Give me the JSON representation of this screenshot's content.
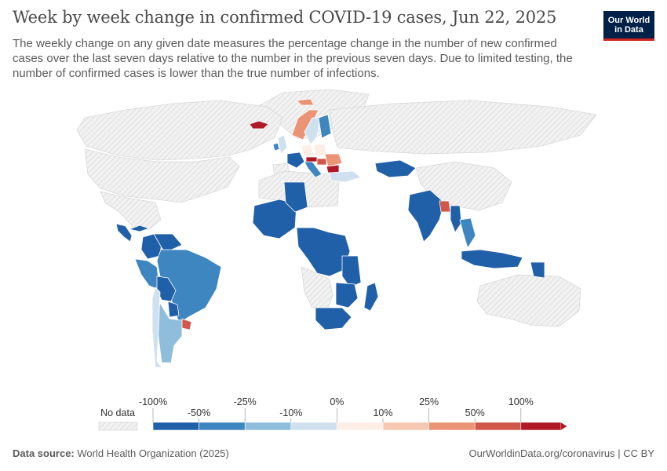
{
  "title": "Week by week change in confirmed COVID-19 cases, Jun 22, 2025",
  "subtitle": "The weekly change on any given date measures the percentage change in the number of new confirmed cases over the last seven days relative to the number in the previous seven days. Due to limited testing, the number of confirmed cases is lower than the true number of infections.",
  "logo": {
    "line1": "Our World",
    "line2": "in Data"
  },
  "legend": {
    "no_data_label": "No data",
    "upper_ticks": [
      "-100%",
      "-25%",
      "0%",
      "25%",
      "100%"
    ],
    "lower_ticks": [
      "-50%",
      "-10%",
      "10%",
      "50%"
    ],
    "colors": [
      "#2060a8",
      "#3d86c0",
      "#8fbedd",
      "#cfe1ef",
      "#fdeee5",
      "#f6c8b2",
      "#ea9475",
      "#d1574a",
      "#b01a28"
    ]
  },
  "colors": {
    "no_data": "#e4e4e4",
    "outline": "#ffffff"
  },
  "footer": {
    "source_label": "Data source:",
    "source_value": "World Health Organization (2025)",
    "url": "OurWorldinData.org/coronavirus | CC BY"
  },
  "regions": [
    {
      "name": "Greenland",
      "bin": "no-data"
    },
    {
      "name": "Canada",
      "bin": "no-data"
    },
    {
      "name": "United States",
      "bin": "no-data"
    },
    {
      "name": "Mexico",
      "bin": "no-data"
    },
    {
      "name": "Cuba",
      "bin": "-100%..-50%"
    },
    {
      "name": "Central America",
      "bin": "-100%..-50%"
    },
    {
      "name": "Colombia",
      "bin": "-100%..-50%"
    },
    {
      "name": "Venezuela",
      "bin": "-100%..-50%"
    },
    {
      "name": "Brazil",
      "bin": "-50%..-25%"
    },
    {
      "name": "Peru",
      "bin": "-50%..-25%"
    },
    {
      "name": "Bolivia",
      "bin": "-100%..-50%"
    },
    {
      "name": "Paraguay",
      "bin": "-100%..-50%"
    },
    {
      "name": "Argentina",
      "bin": "-25%..-10%"
    },
    {
      "name": "Chile",
      "bin": "-10%..0%"
    },
    {
      "name": "Uruguay",
      "bin": "50%..100%"
    },
    {
      "name": "Iceland",
      "bin": ">100%"
    },
    {
      "name": "Ireland",
      "bin": "-50%..-25%"
    },
    {
      "name": "United Kingdom",
      "bin": "-10%..0%"
    },
    {
      "name": "France",
      "bin": "-100%..-50%"
    },
    {
      "name": "Spain",
      "bin": "no-data"
    },
    {
      "name": "Germany",
      "bin": "0%..10%"
    },
    {
      "name": "Poland",
      "bin": "0%..10%"
    },
    {
      "name": "Italy",
      "bin": "-50%..-25%"
    },
    {
      "name": "Austria",
      "bin": ">100%"
    },
    {
      "name": "Hungary",
      "bin": "50%..100%"
    },
    {
      "name": "Romania",
      "bin": "25%..50%"
    },
    {
      "name": "Bulgaria",
      "bin": ">100%"
    },
    {
      "name": "Norway",
      "bin": "25%..50%"
    },
    {
      "name": "Sweden",
      "bin": "-10%..0%"
    },
    {
      "name": "Finland",
      "bin": "-50%..-25%"
    },
    {
      "name": "Svalbard",
      "bin": "25%..50%"
    },
    {
      "name": "Turkey",
      "bin": "-10%..0%"
    },
    {
      "name": "Russia",
      "bin": "no-data"
    },
    {
      "name": "Kazakhstan",
      "bin": "-100%..-50%"
    },
    {
      "name": "China",
      "bin": "no-data"
    },
    {
      "name": "India",
      "bin": "-100%..-50%"
    },
    {
      "name": "Bangladesh",
      "bin": "50%..100%"
    },
    {
      "name": "Myanmar",
      "bin": "-100%..-50%"
    },
    {
      "name": "Thailand",
      "bin": "-50%..-25%"
    },
    {
      "name": "Indonesia",
      "bin": "-100%..-50%"
    },
    {
      "name": "Papua New Guinea",
      "bin": "-100%..-50%"
    },
    {
      "name": "Australia",
      "bin": "no-data"
    },
    {
      "name": "West Africa",
      "bin": "-100%..-50%"
    },
    {
      "name": "Chad",
      "bin": "-100%..-50%"
    },
    {
      "name": "Central Africa",
      "bin": "-100%..-50%"
    },
    {
      "name": "Tanzania",
      "bin": "-100%..-50%"
    },
    {
      "name": "Mozambique",
      "bin": "-100%..-50%"
    },
    {
      "name": "Madagascar",
      "bin": "-100%..-50%"
    },
    {
      "name": "South Africa",
      "bin": "-100%..-50%"
    },
    {
      "name": "North Africa",
      "bin": "no-data"
    },
    {
      "name": "Angola/Namibia",
      "bin": "no-data"
    }
  ]
}
